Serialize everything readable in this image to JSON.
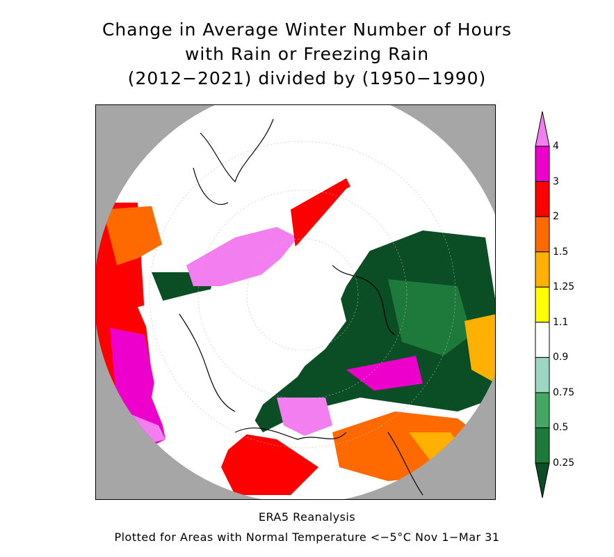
{
  "title": {
    "line1": "Change in Average Winter Number of Hours",
    "line2": "with Rain or Freezing Rain",
    "line3": "(2012−2021) divided by (1950−1990)"
  },
  "footer": {
    "line1": "ERA5 Reanalysis",
    "line2": "Plotted for Areas with Normal Temperature <−5°C Nov 1−Mar 31"
  },
  "colorbar": {
    "levels": [
      "0.25",
      "0.5",
      "0.75",
      "0.9",
      "1.1",
      "1.25",
      "1.5",
      "2",
      "3",
      "4"
    ],
    "colors": [
      "#0b4d24",
      "#1e7a3a",
      "#43a862",
      "#9dd6c3",
      "#ffffff",
      "#ffff00",
      "#ffb000",
      "#ff6a00",
      "#ff0000",
      "#ee00cc",
      "#f27ef0"
    ]
  },
  "map": {
    "missing_color": "#a6a6a6",
    "projection": "north polar stereographic"
  }
}
